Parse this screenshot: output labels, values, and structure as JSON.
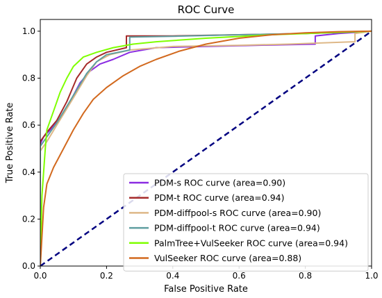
{
  "chart_data": {
    "type": "line",
    "title": "ROC Curve",
    "xlabel": "False Positive Rate",
    "ylabel": "True Positive Rate",
    "xlim": [
      0.0,
      1.0
    ],
    "ylim": [
      0.0,
      1.05
    ],
    "x_ticks": [
      "0.0",
      "0.2",
      "0.4",
      "0.6",
      "0.8",
      "1.0"
    ],
    "y_ticks": [
      "0.0",
      "0.2",
      "0.4",
      "0.6",
      "0.8",
      "1.0"
    ],
    "grid": false,
    "legend_position": "lower-right",
    "series": [
      {
        "name": "PDM-s ROC curve (area=0.90)",
        "color": "#8a2be2",
        "points": [
          [
            0,
            0
          ],
          [
            0,
            0.52
          ],
          [
            0.01,
            0.55
          ],
          [
            0.03,
            0.58
          ],
          [
            0.06,
            0.63
          ],
          [
            0.09,
            0.7
          ],
          [
            0.12,
            0.78
          ],
          [
            0.15,
            0.83
          ],
          [
            0.18,
            0.86
          ],
          [
            0.22,
            0.88
          ],
          [
            0.27,
            0.91
          ],
          [
            0.35,
            0.93
          ],
          [
            0.5,
            0.935
          ],
          [
            0.65,
            0.94
          ],
          [
            0.83,
            0.945
          ],
          [
            0.83,
            0.98
          ],
          [
            0.9,
            0.99
          ],
          [
            1,
            1
          ]
        ]
      },
      {
        "name": "PDM-t ROC curve (area=0.94)",
        "color": "#a52a2a",
        "points": [
          [
            0,
            0
          ],
          [
            0,
            0.53
          ],
          [
            0.02,
            0.57
          ],
          [
            0.05,
            0.62
          ],
          [
            0.08,
            0.7
          ],
          [
            0.11,
            0.8
          ],
          [
            0.14,
            0.86
          ],
          [
            0.17,
            0.89
          ],
          [
            0.2,
            0.91
          ],
          [
            0.26,
            0.93
          ],
          [
            0.26,
            0.98
          ],
          [
            0.4,
            0.98
          ],
          [
            0.6,
            0.985
          ],
          [
            0.8,
            0.99
          ],
          [
            1,
            1
          ]
        ]
      },
      {
        "name": "PDM-diffpool-s ROC curve (area=0.90)",
        "color": "#deb887",
        "points": [
          [
            0,
            0
          ],
          [
            0,
            0.49
          ],
          [
            0.02,
            0.53
          ],
          [
            0.05,
            0.6
          ],
          [
            0.08,
            0.67
          ],
          [
            0.11,
            0.74
          ],
          [
            0.14,
            0.81
          ],
          [
            0.17,
            0.87
          ],
          [
            0.21,
            0.9
          ],
          [
            0.27,
            0.92
          ],
          [
            0.4,
            0.935
          ],
          [
            0.6,
            0.94
          ],
          [
            0.75,
            0.945
          ],
          [
            0.95,
            0.955
          ],
          [
            0.95,
            0.99
          ],
          [
            1,
            1
          ]
        ]
      },
      {
        "name": "PDM-diffpool-t ROC curve (area=0.94)",
        "color": "#5f9ea0",
        "points": [
          [
            0,
            0
          ],
          [
            0,
            0.51
          ],
          [
            0.02,
            0.55
          ],
          [
            0.05,
            0.61
          ],
          [
            0.08,
            0.68
          ],
          [
            0.11,
            0.75
          ],
          [
            0.14,
            0.82
          ],
          [
            0.17,
            0.87
          ],
          [
            0.2,
            0.9
          ],
          [
            0.27,
            0.92
          ],
          [
            0.27,
            0.975
          ],
          [
            0.4,
            0.978
          ],
          [
            0.6,
            0.985
          ],
          [
            0.8,
            0.99
          ],
          [
            1,
            1
          ]
        ]
      },
      {
        "name": "PalmTree+VulSeeker ROC curve (area=0.94)",
        "color": "#7fff00",
        "points": [
          [
            0,
            0
          ],
          [
            0.005,
            0.3
          ],
          [
            0.01,
            0.4
          ],
          [
            0.015,
            0.5
          ],
          [
            0.02,
            0.58
          ],
          [
            0.04,
            0.66
          ],
          [
            0.06,
            0.74
          ],
          [
            0.08,
            0.8
          ],
          [
            0.1,
            0.85
          ],
          [
            0.13,
            0.89
          ],
          [
            0.17,
            0.91
          ],
          [
            0.22,
            0.93
          ],
          [
            0.28,
            0.945
          ],
          [
            0.35,
            0.955
          ],
          [
            0.5,
            0.97
          ],
          [
            0.7,
            0.985
          ],
          [
            0.9,
            0.995
          ],
          [
            1,
            1
          ]
        ]
      },
      {
        "name": "VulSeeker ROC curve (area=0.88)",
        "color": "#d2691e",
        "points": [
          [
            0,
            0
          ],
          [
            0.01,
            0.25
          ],
          [
            0.02,
            0.35
          ],
          [
            0.04,
            0.42
          ],
          [
            0.07,
            0.5
          ],
          [
            0.1,
            0.58
          ],
          [
            0.13,
            0.65
          ],
          [
            0.16,
            0.71
          ],
          [
            0.2,
            0.76
          ],
          [
            0.25,
            0.81
          ],
          [
            0.3,
            0.85
          ],
          [
            0.35,
            0.88
          ],
          [
            0.42,
            0.915
          ],
          [
            0.5,
            0.945
          ],
          [
            0.6,
            0.97
          ],
          [
            0.7,
            0.985
          ],
          [
            0.8,
            0.993
          ],
          [
            0.9,
            0.998
          ],
          [
            1,
            1
          ]
        ]
      },
      {
        "name": "",
        "color": "#000080",
        "dashed": true,
        "points": [
          [
            0,
            0
          ],
          [
            1,
            1
          ]
        ]
      }
    ]
  }
}
